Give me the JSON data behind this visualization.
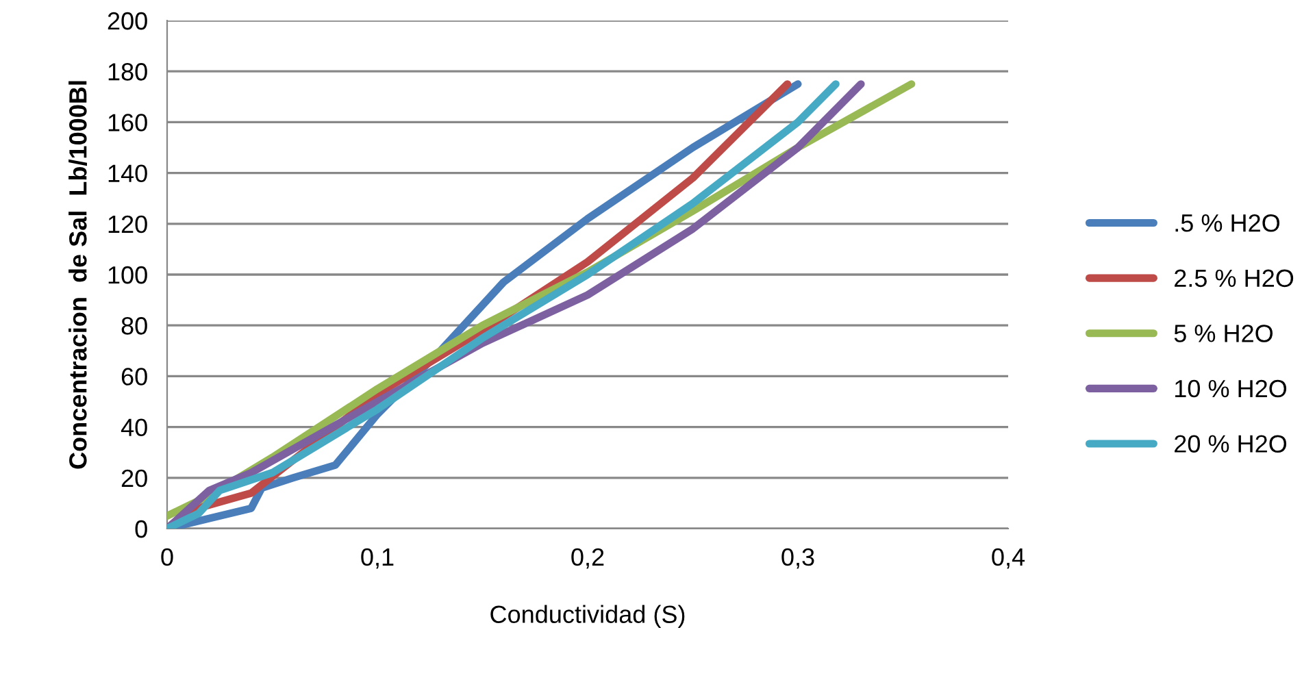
{
  "chart_data": {
    "type": "line",
    "xlabel": "Conductividad (S)",
    "ylabel": "Concentracion  de Sal  Lb/1000Bl",
    "xlim": [
      0,
      0.4
    ],
    "xticks": [
      0,
      {
        "value": 0.1,
        "label": "0,1"
      },
      {
        "value": 0.2,
        "label": "0,2"
      },
      {
        "value": 0.3,
        "label": "0,3"
      },
      {
        "value": 0.4,
        "label": "0,4"
      }
    ],
    "ylim": [
      0,
      200
    ],
    "yticks": [
      0,
      20,
      40,
      60,
      80,
      100,
      120,
      140,
      160,
      180,
      200
    ],
    "grid": "y",
    "legend": "right",
    "marker": "none",
    "line_style": "solid",
    "series": [
      {
        "name": ".5 % H2O",
        "color": "#4a7ebb",
        "x": [
          0,
          0.02,
          0.04,
          0.045,
          0.06,
          0.08,
          0.1,
          0.13,
          0.16,
          0.2,
          0.25,
          0.3
        ],
        "values": [
          0,
          4,
          8,
          16,
          20,
          25,
          45,
          70,
          97,
          122,
          150,
          175
        ]
      },
      {
        "name": "2.5 % H2O",
        "color": "#be4b48",
        "x": [
          0,
          0.01,
          0.04,
          0.06,
          0.1,
          0.15,
          0.2,
          0.25,
          0.295
        ],
        "values": [
          0,
          7,
          14,
          27,
          53,
          78,
          105,
          138,
          175
        ]
      },
      {
        "name": "5 % H2O",
        "color": "#98b954",
        "x": [
          0,
          0.02,
          0.05,
          0.1,
          0.15,
          0.2,
          0.25,
          0.3,
          0.354
        ],
        "values": [
          5,
          13,
          28,
          55,
          80,
          101,
          125,
          150,
          175
        ]
      },
      {
        "name": "10 % H2O",
        "color": "#7d60a0",
        "x": [
          0,
          0.02,
          0.04,
          0.1,
          0.15,
          0.2,
          0.25,
          0.3,
          0.33
        ],
        "values": [
          0,
          15,
          22,
          50,
          73,
          92,
          118,
          150,
          175
        ]
      },
      {
        "name": "20 % H2O",
        "color": "#46aac5",
        "x": [
          0,
          0.015,
          0.025,
          0.05,
          0.1,
          0.15,
          0.2,
          0.25,
          0.3,
          0.318
        ],
        "values": [
          0,
          6,
          15,
          22,
          47,
          75,
          100,
          128,
          160,
          175
        ]
      }
    ]
  }
}
